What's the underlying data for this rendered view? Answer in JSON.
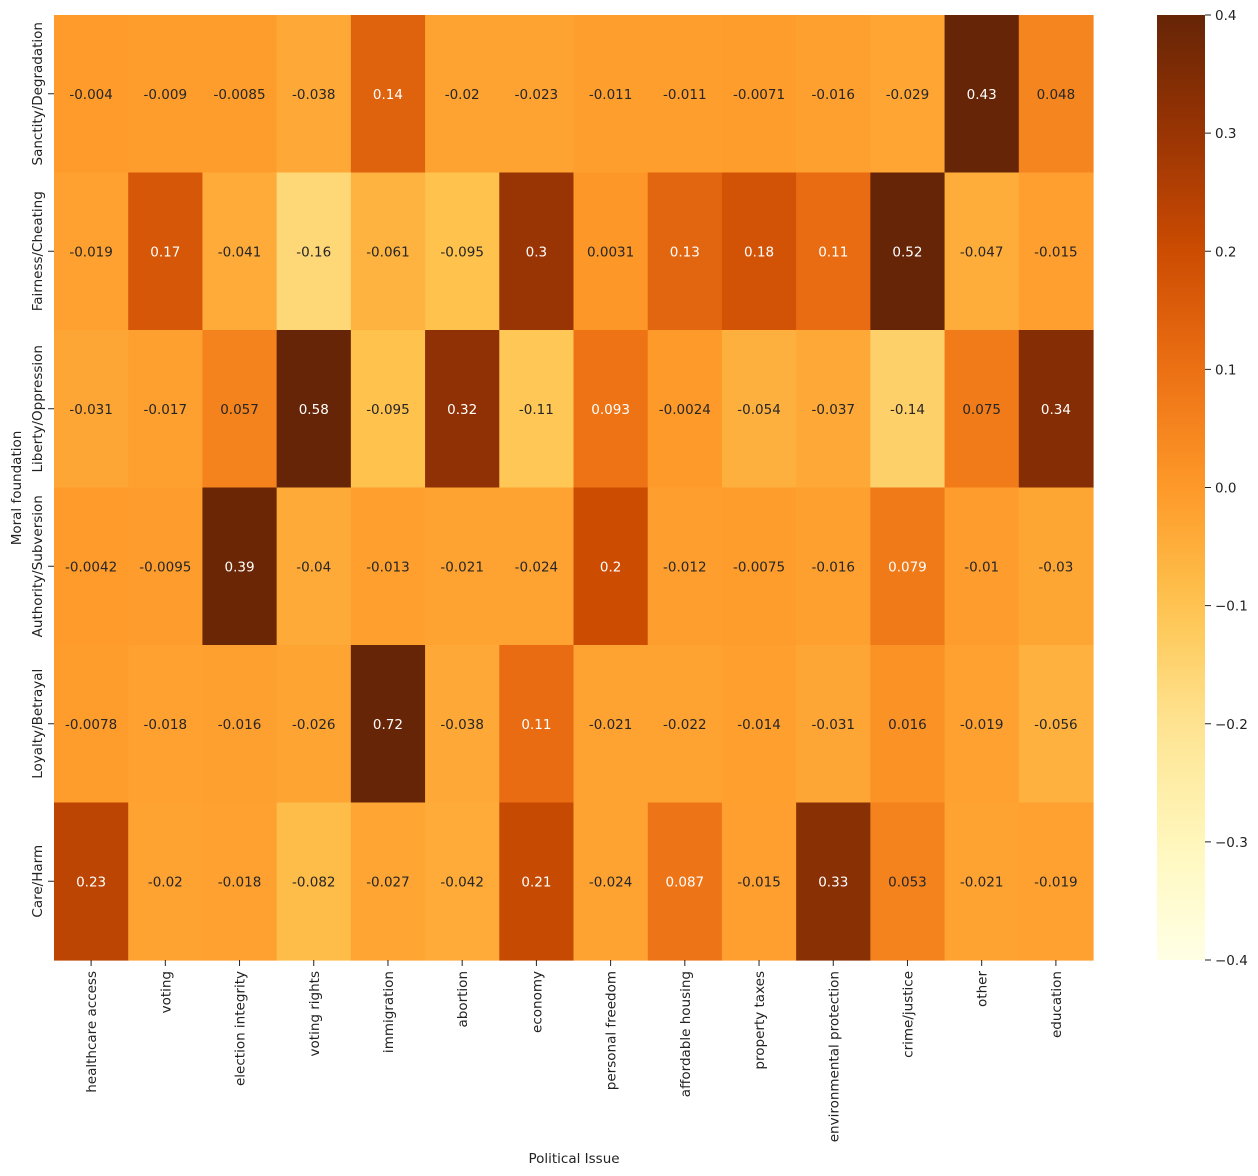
{
  "chart_data": {
    "type": "heatmap",
    "title": "",
    "xlabel": "Political Issue",
    "ylabel": "Moral foundation",
    "x_categories": [
      "healthcare access",
      "voting",
      "election integrity",
      "voting rights",
      "immigration",
      "abortion",
      "economy",
      "personal freedom",
      "affordable housing",
      "property taxes",
      "environmental protection",
      "crime/justice",
      "other",
      "education"
    ],
    "y_categories": [
      "Sanctity/Degradation",
      "Fairness/Cheating",
      "Liberty/Oppression",
      "Authority/Subversion",
      "Loyalty/Betrayal",
      "Care/Harm"
    ],
    "values": [
      [
        -0.004,
        -0.009,
        -0.0085,
        -0.038,
        0.14,
        -0.02,
        -0.023,
        -0.011,
        -0.011,
        -0.0071,
        -0.016,
        -0.029,
        0.43,
        0.048
      ],
      [
        -0.019,
        0.17,
        -0.041,
        -0.16,
        -0.061,
        -0.095,
        0.3,
        0.0031,
        0.13,
        0.18,
        0.11,
        0.52,
        -0.047,
        -0.015
      ],
      [
        -0.031,
        -0.017,
        0.057,
        0.58,
        -0.095,
        0.32,
        -0.11,
        0.093,
        -0.0024,
        -0.054,
        -0.037,
        -0.14,
        0.075,
        0.34
      ],
      [
        -0.0042,
        -0.0095,
        0.39,
        -0.04,
        -0.013,
        -0.021,
        -0.024,
        0.2,
        -0.012,
        -0.0075,
        -0.016,
        0.079,
        -0.01,
        -0.03
      ],
      [
        -0.0078,
        -0.018,
        -0.016,
        -0.026,
        0.72,
        -0.038,
        0.11,
        -0.021,
        -0.022,
        -0.014,
        -0.031,
        0.016,
        -0.019,
        -0.056
      ],
      [
        0.23,
        -0.02,
        -0.018,
        -0.082,
        -0.027,
        -0.042,
        0.21,
        -0.024,
        0.087,
        -0.015,
        0.33,
        0.053,
        -0.021,
        -0.019
      ]
    ],
    "labels": [
      [
        "-0.004",
        "-0.009",
        "-0.0085",
        "-0.038",
        "0.14",
        "-0.02",
        "-0.023",
        "-0.011",
        "-0.011",
        "-0.0071",
        "-0.016",
        "-0.029",
        "0.43",
        "0.048"
      ],
      [
        "-0.019",
        "0.17",
        "-0.041",
        "-0.16",
        "-0.061",
        "-0.095",
        "0.3",
        "0.0031",
        "0.13",
        "0.18",
        "0.11",
        "0.52",
        "-0.047",
        "-0.015"
      ],
      [
        "-0.031",
        "-0.017",
        "0.057",
        "0.58",
        "-0.095",
        "0.32",
        "-0.11",
        "0.093",
        "-0.0024",
        "-0.054",
        "-0.037",
        "-0.14",
        "0.075",
        "0.34"
      ],
      [
        "-0.0042",
        "-0.0095",
        "0.39",
        "-0.04",
        "-0.013",
        "-0.021",
        "-0.024",
        "0.2",
        "-0.012",
        "-0.0075",
        "-0.016",
        "0.079",
        "-0.01",
        "-0.03"
      ],
      [
        "-0.0078",
        "-0.018",
        "-0.016",
        "-0.026",
        "0.72",
        "-0.038",
        "0.11",
        "-0.021",
        "-0.022",
        "-0.014",
        "-0.031",
        "0.016",
        "-0.019",
        "-0.056"
      ],
      [
        "0.23",
        "-0.02",
        "-0.018",
        "-0.082",
        "-0.027",
        "-0.042",
        "0.21",
        "-0.024",
        "0.087",
        "-0.015",
        "0.33",
        "0.053",
        "-0.021",
        "-0.019"
      ]
    ],
    "colormap": "YlOrBr",
    "vmin": -0.4,
    "vmax": 0.4,
    "colorbar_ticks": [
      0.4,
      0.3,
      0.2,
      0.1,
      0.0,
      -0.1,
      -0.2,
      -0.3,
      -0.4
    ],
    "colorbar_tick_labels": [
      "0.4",
      "0.3",
      "0.2",
      "0.1",
      "0.0",
      "−0.1",
      "−0.2",
      "−0.3",
      "−0.4"
    ]
  }
}
